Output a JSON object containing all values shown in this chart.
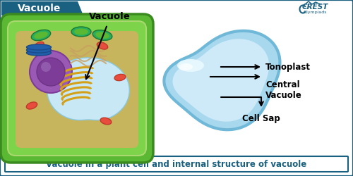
{
  "bg_color": "#ffffff",
  "border_color": "#1a6080",
  "header_color": "#1a6080",
  "header_text": "Vacuole",
  "header_text_color": "#ffffff",
  "footer_text": "Vacuole in a plant cell and internal structure of vacuole",
  "footer_text_color": "#1a6080",
  "footer_border_color": "#1a6080",
  "vacuole_label": "Vacuole",
  "tonoplast_label": "Tonoplast",
  "central_vacuole_label": "Central\nVacuole",
  "cell_sap_label": "Cell Sap",
  "label_fontsize": 8.5,
  "header_fontsize": 10,
  "footer_fontsize": 8.5,
  "outer_vacuole_color": "#a8d8ee",
  "inner_vacuole_color": "#ceeaf8",
  "highlight_color": "#eaf7ff",
  "cell_outer_color": "#5ab832",
  "cell_inner_color": "#7dd44a",
  "cell_border_color": "#3a8a20",
  "cell_border2_color": "#aad870",
  "vacuole_cell_color": "#c8e8f5",
  "nucleus_color": "#9b59b6",
  "nucleus_inner_color": "#7d3c98",
  "golgi_color": "#d4a017",
  "mito_color": "#e74c3c",
  "chloro_color": "#27ae60",
  "er_color": "#c8a060"
}
